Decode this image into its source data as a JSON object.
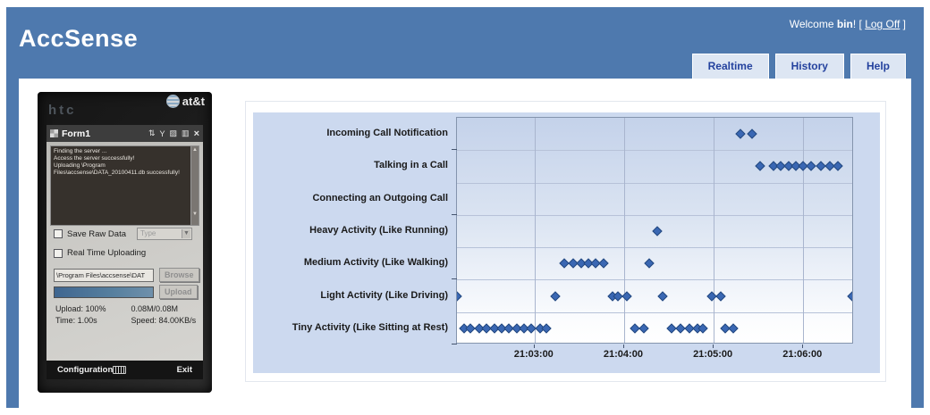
{
  "header": {
    "app_title": "AccSense",
    "welcome_prefix": "Welcome ",
    "username": "bin",
    "welcome_mid": "! [ ",
    "logoff_label": "Log Off",
    "welcome_end": " ]",
    "tabs": [
      {
        "label": "Realtime"
      },
      {
        "label": "History"
      },
      {
        "label": "Help"
      }
    ]
  },
  "phone": {
    "brand": "htc",
    "carrier": "at&t",
    "window_title": "Form1",
    "titlebar_icons": [
      "connectivity-icon",
      "signal-icon",
      "note-icon",
      "battery-icon",
      "close-icon"
    ],
    "log_lines": [
      "Finding the server ...",
      "Access the server successfully!",
      "Uploading \\Program Files\\accsense\\DATA_20100411.db successfully!"
    ],
    "save_raw_data_label": "Save Raw Data",
    "type_dropdown_value": "Type",
    "realtime_upload_label": "Real Time Uploading",
    "path_value": "\\Program Files\\accsense\\DAT",
    "browse_label": "Browse",
    "upload_button_label": "Upload",
    "upload_progress": "100%",
    "stats": {
      "upload": "Upload: 100%",
      "size": "0.08M/0.08M",
      "time": "Time: 1.00s",
      "speed": "Speed: 84.00KB/s"
    },
    "softkeys": {
      "left": "Configuration",
      "right": "Exit"
    }
  },
  "chart_data": {
    "type": "scatter",
    "marker": {
      "shape": "diamond",
      "color": "#3a67b3"
    },
    "grid": true,
    "legend": false,
    "x_axis": {
      "start": "21:02:08",
      "end": "21:06:34",
      "ticks": [
        "21:03:00",
        "21:04:00",
        "21:05:00",
        "21:06:00"
      ]
    },
    "categories": [
      "Incoming Call Notification",
      "Talking in a Call",
      "Connecting an Outgoing Call",
      "Heavy Activity (Like Running)",
      "Medium Activity (Like Walking)",
      "Light Activity (Like Driving)",
      "Tiny Activity (Like Sitting at Rest)"
    ],
    "series": [
      {
        "category": "Incoming Call Notification",
        "times": [
          "21:05:18",
          "21:05:26"
        ]
      },
      {
        "category": "Talking in a Call",
        "times": [
          "21:05:31",
          "21:05:40",
          "21:05:45",
          "21:05:50",
          "21:05:55",
          "21:06:00",
          "21:06:05",
          "21:06:12",
          "21:06:18",
          "21:06:23"
        ]
      },
      {
        "category": "Connecting an Outgoing Call",
        "times": []
      },
      {
        "category": "Heavy Activity (Like Running)",
        "times": [
          "21:04:22"
        ]
      },
      {
        "category": "Medium Activity (Like Walking)",
        "times": [
          "21:03:20",
          "21:03:26",
          "21:03:31",
          "21:03:36",
          "21:03:41",
          "21:03:46",
          "21:04:17"
        ]
      },
      {
        "category": "Light Activity (Like Driving)",
        "times": [
          "21:02:08",
          "21:03:14",
          "21:03:52",
          "21:03:56",
          "21:04:02",
          "21:04:26",
          "21:04:59",
          "21:05:05",
          "21:06:33"
        ]
      },
      {
        "category": "Tiny Activity (Like Sitting at Rest)",
        "times": [
          "21:02:13",
          "21:02:17",
          "21:02:23",
          "21:02:28",
          "21:02:33",
          "21:02:38",
          "21:02:43",
          "21:02:48",
          "21:02:53",
          "21:02:58",
          "21:03:04",
          "21:03:08",
          "21:04:07",
          "21:04:13",
          "21:04:32",
          "21:04:38",
          "21:04:44",
          "21:04:49",
          "21:04:53",
          "21:05:08",
          "21:05:13"
        ]
      }
    ]
  },
  "colors": {
    "header_blue": "#4e79ae",
    "tab_bg": "#dde6f3",
    "tab_text": "#24429e",
    "chart_panel_bg": "#ccd9ef",
    "plot_gradient_top": "#c4d2ea",
    "plot_gradient_bottom": "#ffffff",
    "gridline": "#a9b5ce",
    "marker": "#3a67b3",
    "marker_border": "#25497f"
  }
}
